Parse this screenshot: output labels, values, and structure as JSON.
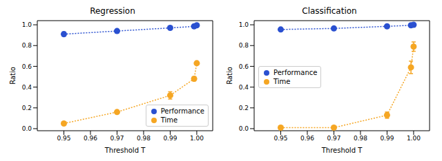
{
  "chart_data": [
    {
      "type": "scatter",
      "title": "Regression",
      "x_label": "Threshold T",
      "y_label": "Ratio",
      "x": [
        0.95,
        0.97,
        0.99,
        0.999,
        1.0
      ],
      "series": [
        {
          "name": "Performance",
          "color": "#2a50d0",
          "marker": "o",
          "line_style": "dotted",
          "values": [
            0.91,
            0.94,
            0.97,
            0.985,
            0.995
          ],
          "errors": [
            0.02,
            0.015,
            0.008,
            0.005,
            0.005
          ]
        },
        {
          "name": "Time",
          "color": "#f5a623",
          "marker": "o",
          "line_style": "dotted",
          "values": [
            0.05,
            0.16,
            0.32,
            0.48,
            0.63
          ],
          "errors": [
            0.01,
            0.015,
            0.035,
            0.02,
            0.01
          ]
        }
      ],
      "xlim": [
        0.94,
        1.006
      ],
      "ylim": [
        -0.02,
        1.04
      ],
      "xticks": [
        0.95,
        0.96,
        0.97,
        0.98,
        0.99,
        {
          "value": 1,
          "label": "1.00"
        }
      ],
      "yticks": [
        {
          "value": 0,
          "label": "0.0"
        },
        0.2,
        0.4,
        0.6,
        0.8,
        {
          "value": 1,
          "label": "1.0"
        }
      ],
      "legend": "lower right"
    },
    {
      "type": "scatter",
      "title": "Classification",
      "x_label": "Threshold T",
      "y_label": "Ratio",
      "x": [
        0.95,
        0.97,
        0.99,
        0.999,
        1.0
      ],
      "series": [
        {
          "name": "Performance",
          "color": "#2a50d0",
          "marker": "o",
          "line_style": "dotted",
          "values": [
            0.955,
            0.965,
            0.985,
            0.995,
            1.0
          ],
          "errors": [
            0.005,
            0.005,
            0.005,
            0.005,
            0.005
          ]
        },
        {
          "name": "Time",
          "color": "#f5a623",
          "marker": "o",
          "line_style": "dotted",
          "values": [
            0.01,
            0.01,
            0.13,
            0.59,
            0.79
          ],
          "errors": [
            0.005,
            0.005,
            0.03,
            0.06,
            0.045
          ]
        }
      ],
      "xlim": [
        0.94,
        1.006
      ],
      "ylim": [
        -0.02,
        1.04
      ],
      "xticks": [
        0.95,
        0.96,
        0.97,
        0.98,
        0.99,
        {
          "value": 1,
          "label": "1.00"
        }
      ],
      "yticks": [
        {
          "value": 0,
          "label": "0.0"
        },
        0.2,
        0.4,
        0.6,
        0.8,
        {
          "value": 1,
          "label": "1.0"
        }
      ],
      "legend": "center left"
    }
  ]
}
